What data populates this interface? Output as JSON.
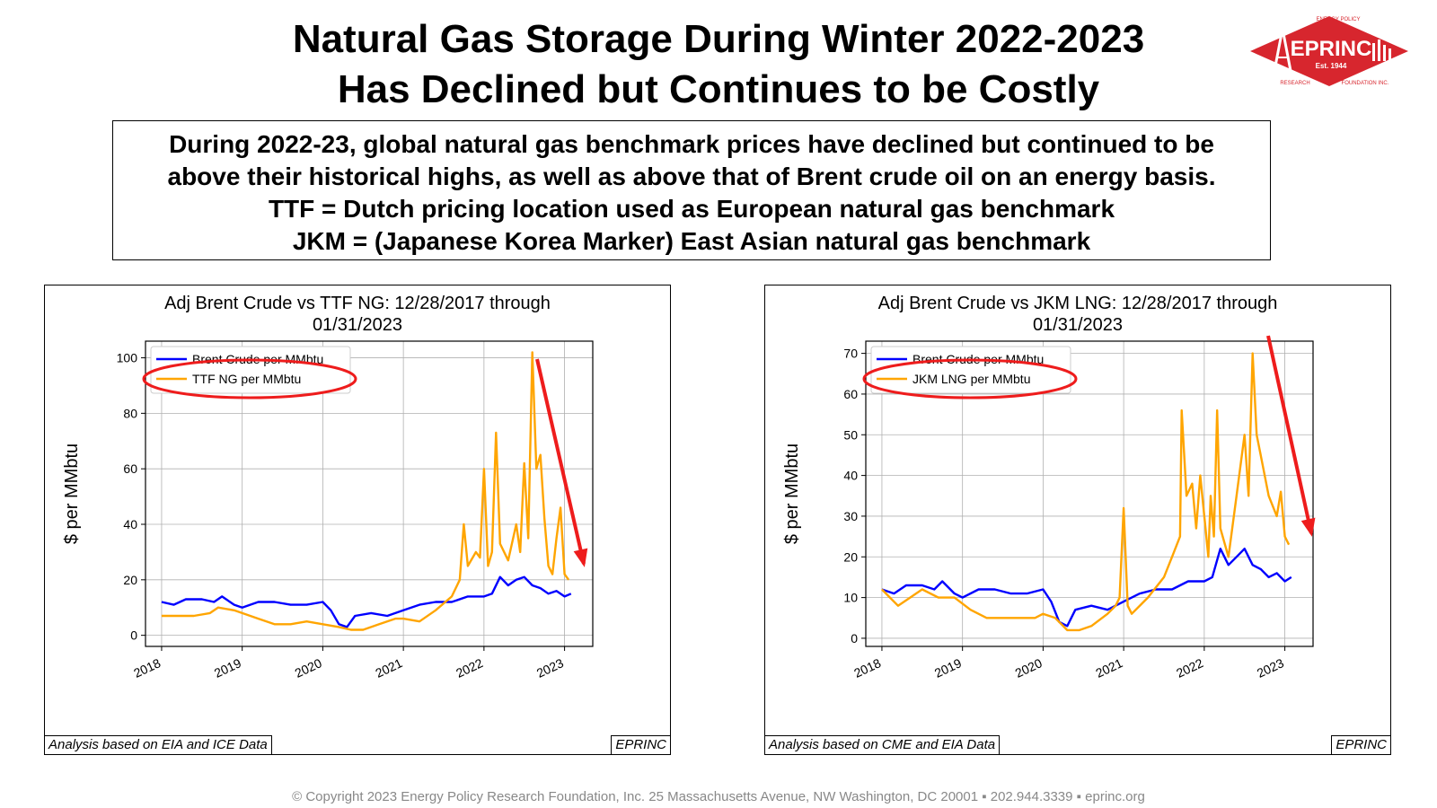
{
  "header": {
    "title_line1": "Natural Gas Storage During Winter 2022-2023",
    "title_line2": "Has Declined but Continues to be Costly"
  },
  "logo": {
    "name": "EPRINC",
    "est": "Est. 1944",
    "arc_top": "ENERGY POLICY",
    "arc_left": "RESEARCH",
    "arc_right": "FOUNDATION INC.",
    "color": "#d7262e"
  },
  "callout": {
    "line1": "During 2022-23, global natural gas benchmark prices have declined but continued to be",
    "line2": "above their historical highs, as well as above that of Brent crude oil on an energy basis.",
    "line3": "TTF = Dutch pricing location used as European natural gas benchmark",
    "line4": "JKM = (Japanese Korea Marker) East Asian natural gas benchmark"
  },
  "footer": {
    "copyright": "© Copyright 2023 Energy Policy Research Foundation, Inc. 25 Massachusetts Avenue, NW Washington, DC 20001 ▪ 202.944.3339 ▪ eprinc.org"
  },
  "chart_data": [
    {
      "type": "line",
      "title_line1": "Adj Brent Crude vs TTF NG: 12/28/2017 through",
      "title_line2": "01/31/2023",
      "ylabel": "$ per MMbtu",
      "xlim": [
        2017.8,
        2023.35
      ],
      "ylim": [
        -4,
        106
      ],
      "yticks": [
        0,
        20,
        40,
        60,
        80,
        100
      ],
      "xticks": [
        "2018",
        "2019",
        "2020",
        "2021",
        "2022",
        "2023"
      ],
      "grid": true,
      "legend_position": "upper-left",
      "source_note": "Analysis based on EIA and ICE Data",
      "brand_note": "EPRINC",
      "series": [
        {
          "name": "Brent Crude per MMbtu",
          "color": "#0000ff",
          "x": [
            2018.0,
            2018.15,
            2018.3,
            2018.5,
            2018.65,
            2018.75,
            2018.9,
            2019.0,
            2019.2,
            2019.4,
            2019.6,
            2019.8,
            2020.0,
            2020.1,
            2020.2,
            2020.3,
            2020.4,
            2020.6,
            2020.8,
            2021.0,
            2021.2,
            2021.4,
            2021.6,
            2021.8,
            2022.0,
            2022.1,
            2022.2,
            2022.3,
            2022.4,
            2022.5,
            2022.6,
            2022.7,
            2022.8,
            2022.9,
            2023.0,
            2023.08
          ],
          "values": [
            12,
            11,
            13,
            13,
            12,
            14,
            11,
            10,
            12,
            12,
            11,
            11,
            12,
            9,
            4,
            3,
            7,
            8,
            7,
            9,
            11,
            12,
            12,
            14,
            14,
            15,
            21,
            18,
            20,
            21,
            18,
            17,
            15,
            16,
            14,
            15
          ]
        },
        {
          "name": "TTF NG per MMbtu",
          "color": "#ffa500",
          "x": [
            2018.0,
            2018.2,
            2018.4,
            2018.6,
            2018.7,
            2018.9,
            2019.0,
            2019.2,
            2019.4,
            2019.6,
            2019.8,
            2020.0,
            2020.2,
            2020.35,
            2020.5,
            2020.7,
            2020.9,
            2021.0,
            2021.2,
            2021.4,
            2021.6,
            2021.7,
            2021.75,
            2021.8,
            2021.9,
            2021.95,
            2022.0,
            2022.05,
            2022.1,
            2022.15,
            2022.2,
            2022.3,
            2022.4,
            2022.45,
            2022.5,
            2022.55,
            2022.6,
            2022.65,
            2022.7,
            2022.75,
            2022.8,
            2022.85,
            2022.9,
            2022.95,
            2023.0,
            2023.05
          ],
          "values": [
            7,
            7,
            7,
            8,
            10,
            9,
            8,
            6,
            4,
            4,
            5,
            4,
            3,
            2,
            2,
            4,
            6,
            6,
            5,
            9,
            14,
            20,
            40,
            25,
            30,
            28,
            60,
            25,
            30,
            73,
            33,
            27,
            40,
            30,
            62,
            35,
            102,
            60,
            65,
            42,
            25,
            22,
            35,
            46,
            22,
            20
          ]
        }
      ],
      "annotations": [
        "legend-ellipse-ttf",
        "down-arrow"
      ]
    },
    {
      "type": "line",
      "title_line1": "Adj Brent Crude vs JKM LNG: 12/28/2017 through",
      "title_line2": "01/31/2023",
      "ylabel": "$ per MMbtu",
      "xlim": [
        2017.8,
        2023.35
      ],
      "ylim": [
        -2,
        73
      ],
      "yticks": [
        0,
        10,
        20,
        30,
        40,
        50,
        60,
        70
      ],
      "xticks": [
        "2018",
        "2019",
        "2020",
        "2021",
        "2022",
        "2023"
      ],
      "grid": true,
      "legend_position": "upper-left",
      "source_note": "Analysis based on CME and EIA Data",
      "brand_note": "EPRINC",
      "series": [
        {
          "name": "Brent Crude per MMbtu",
          "color": "#0000ff",
          "x": [
            2018.0,
            2018.15,
            2018.3,
            2018.5,
            2018.65,
            2018.75,
            2018.9,
            2019.0,
            2019.2,
            2019.4,
            2019.6,
            2019.8,
            2020.0,
            2020.1,
            2020.2,
            2020.3,
            2020.4,
            2020.6,
            2020.8,
            2021.0,
            2021.2,
            2021.4,
            2021.6,
            2021.8,
            2022.0,
            2022.1,
            2022.2,
            2022.3,
            2022.4,
            2022.5,
            2022.6,
            2022.7,
            2022.8,
            2022.9,
            2023.0,
            2023.08
          ],
          "values": [
            12,
            11,
            13,
            13,
            12,
            14,
            11,
            10,
            12,
            12,
            11,
            11,
            12,
            9,
            4,
            3,
            7,
            8,
            7,
            9,
            11,
            12,
            12,
            14,
            14,
            15,
            22,
            18,
            20,
            22,
            18,
            17,
            15,
            16,
            14,
            15
          ]
        },
        {
          "name": "JKM LNG per MMbtu",
          "color": "#ffa500",
          "x": [
            2018.0,
            2018.1,
            2018.2,
            2018.35,
            2018.5,
            2018.7,
            2018.9,
            2019.1,
            2019.3,
            2019.5,
            2019.7,
            2019.9,
            2020.0,
            2020.15,
            2020.3,
            2020.45,
            2020.6,
            2020.8,
            2020.9,
            2020.95,
            2021.0,
            2021.05,
            2021.1,
            2021.3,
            2021.5,
            2021.6,
            2021.7,
            2021.72,
            2021.78,
            2021.85,
            2021.9,
            2021.95,
            2022.0,
            2022.05,
            2022.08,
            2022.12,
            2022.16,
            2022.2,
            2022.3,
            2022.4,
            2022.5,
            2022.55,
            2022.6,
            2022.65,
            2022.7,
            2022.8,
            2022.9,
            2022.95,
            2023.0,
            2023.05
          ],
          "values": [
            12,
            10,
            8,
            10,
            12,
            10,
            10,
            7,
            5,
            5,
            5,
            5,
            6,
            5,
            2,
            2,
            3,
            6,
            8,
            10,
            32,
            8,
            6,
            10,
            15,
            20,
            25,
            56,
            35,
            38,
            27,
            40,
            30,
            20,
            35,
            25,
            56,
            27,
            20,
            35,
            50,
            35,
            70,
            50,
            45,
            35,
            30,
            36,
            25,
            23
          ]
        }
      ],
      "annotations": [
        "legend-ellipse-jkm",
        "down-arrow"
      ]
    }
  ]
}
